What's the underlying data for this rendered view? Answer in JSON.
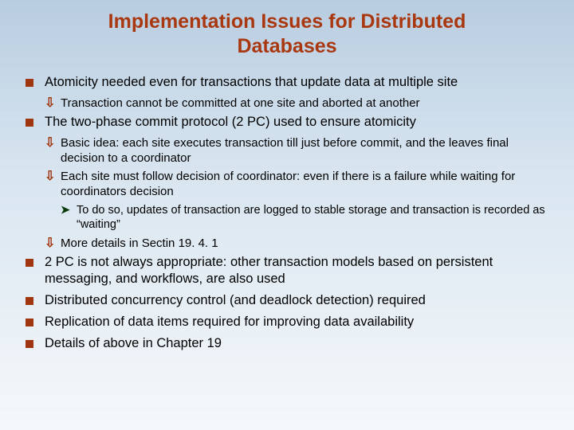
{
  "title": "Implementation Issues for Distributed Databases",
  "b1": "Atomicity needed even for transactions that update data at multiple site",
  "b1_1": "Transaction cannot be committed at one site and aborted at another",
  "b2": "The two-phase commit protocol (2 PC) used to ensure atomicity",
  "b2_1": "Basic idea:  each site executes transaction till just before commit, and the leaves final decision to a coordinator",
  "b2_2": "Each site must follow decision of coordinator: even if there is a failure while waiting for coordinators decision",
  "b2_2_1": "To do so, updates of transaction are logged to stable storage and transaction is recorded as “waiting”",
  "b2_3": "More details in Sectin 19. 4. 1",
  "b3": "2 PC is not always appropriate:  other transaction models based on persistent messaging, and workflows, are also used",
  "b4": "Distributed concurrency control (and deadlock detection) required",
  "b5": "Replication of data items required for improving data availability",
  "b6": "Details of above in Chapter 19",
  "colors": {
    "title_color": "#a93810",
    "bullet_color": "#a03610",
    "arrow_color": "#0a3c0a",
    "bg_top": "#b8cde0",
    "bg_mid": "#d8e5f0",
    "bg_bottom": "#f5f8fa",
    "text_color": "#000000"
  },
  "fonts": {
    "title_size_pt": 25,
    "lvl1_size_pt": 16.5,
    "lvl2_size_pt": 15,
    "lvl3_size_pt": 14.5,
    "family": "Arial"
  }
}
